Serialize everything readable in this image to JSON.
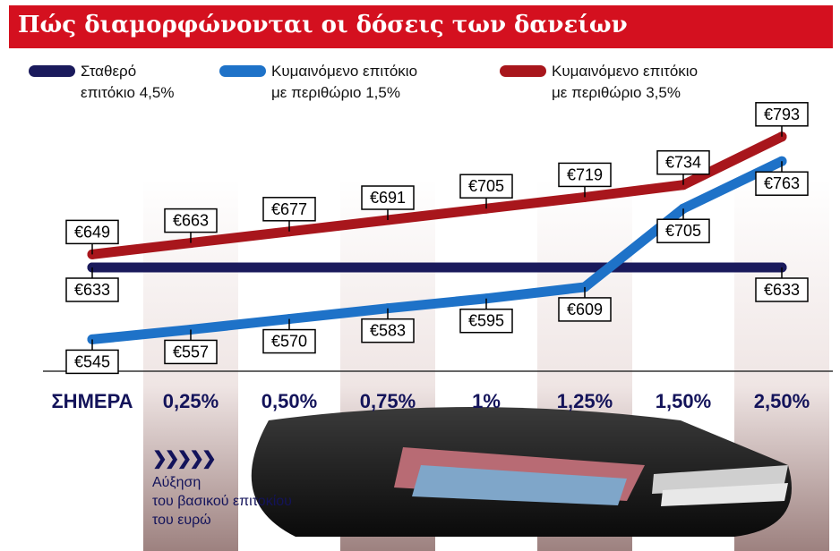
{
  "header": {
    "title": "Πώς διαμορφώνονται οι δόσεις των δανείων"
  },
  "legend": [
    {
      "line1": "Σταθερό",
      "line2": "επιτόκιο 4,5%",
      "color": "#1a1a5c"
    },
    {
      "line1": "Κυμαινόμενο επιτόκιο",
      "line2": "με περιθώριο 1,5%",
      "color": "#1e72c8"
    },
    {
      "line1": "Κυμαινόμενο επιτόκιο",
      "line2": "με περιθώριο 3,5%",
      "color": "#a8161c"
    }
  ],
  "caption": {
    "arrows": "❯❯❯❯❯",
    "line1": "Αύξηση",
    "line2": "του βασικού επιτοκίου",
    "line3": "του ευρώ"
  },
  "chart_data": {
    "type": "line",
    "categories": [
      "ΣΗΜΕΡΑ",
      "0,25%",
      "0,50%",
      "0,75%",
      "1%",
      "1,25%",
      "1,50%",
      "2,50%"
    ],
    "series": [
      {
        "name": "Σταθερό επιτόκιο 4,5%",
        "color": "#1a1a5c",
        "values": [
          633,
          null,
          null,
          null,
          null,
          null,
          null,
          633
        ],
        "labels": [
          "€633",
          "",
          "",
          "",
          "",
          "",
          "",
          "€633"
        ]
      },
      {
        "name": "Κυμαινόμενο επιτόκιο με περιθώριο 1,5%",
        "color": "#1e72c8",
        "values": [
          545,
          557,
          570,
          583,
          595,
          609,
          705,
          763
        ],
        "labels": [
          "€545",
          "€557",
          "€570",
          "€583",
          "€595",
          "€609",
          "€705",
          "€763"
        ]
      },
      {
        "name": "Κυμαινόμενο επιτόκιο με περιθώριο 3,5%",
        "color": "#a8161c",
        "values": [
          649,
          663,
          677,
          691,
          705,
          719,
          734,
          793
        ],
        "labels": [
          "€649",
          "€663",
          "€677",
          "€691",
          "€705",
          "€719",
          "€734",
          "€793"
        ]
      }
    ],
    "xlabel": "",
    "ylabel": "",
    "grid": false
  }
}
